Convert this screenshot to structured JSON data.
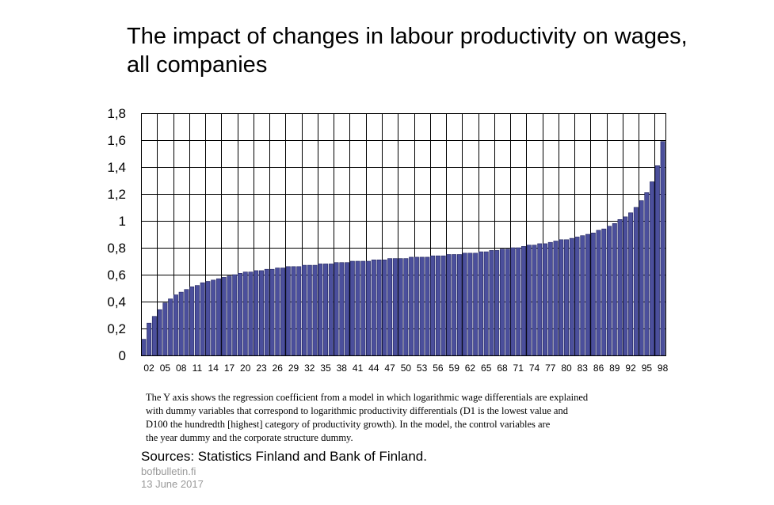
{
  "title_lines": [
    "The impact of changes in labour productivity on wages,",
    "all companies"
  ],
  "note_lines": [
    "The Y axis shows the regression coefficient from a model in which logarithmic  wage differentials are explained",
    " with dummy variables that correspond to logarithmic  productivity  differentials (D1 is the lowest value and",
    " D100 the hundredth [highest] category of productivity  growth). In the model,  the control variables are",
    " the year dummy  and the corporate structure dummy."
  ],
  "sources": "Sources: Statistics Finland  and  Bank of Finland.",
  "site": "bofbulletin.fi",
  "date": "13 June 2017",
  "colors": {
    "bar": "#4b4f9c",
    "bar_edge": "#23265e",
    "grid": "#000000"
  },
  "chart_data": {
    "type": "bar",
    "title": "The impact of changes in labour productivity on wages, all companies",
    "categories": [
      "01",
      "02",
      "03",
      "04",
      "05",
      "06",
      "07",
      "08",
      "09",
      "10",
      "11",
      "12",
      "13",
      "14",
      "15",
      "16",
      "17",
      "18",
      "19",
      "20",
      "21",
      "22",
      "23",
      "24",
      "25",
      "26",
      "27",
      "28",
      "29",
      "30",
      "31",
      "32",
      "33",
      "34",
      "35",
      "36",
      "37",
      "38",
      "39",
      "40",
      "41",
      "42",
      "43",
      "44",
      "45",
      "46",
      "47",
      "48",
      "49",
      "50",
      "51",
      "52",
      "53",
      "54",
      "55",
      "56",
      "57",
      "58",
      "59",
      "60",
      "61",
      "62",
      "63",
      "64",
      "65",
      "66",
      "67",
      "68",
      "69",
      "70",
      "71",
      "72",
      "73",
      "74",
      "75",
      "76",
      "77",
      "78",
      "79",
      "80",
      "81",
      "82",
      "83",
      "84",
      "85",
      "86",
      "87",
      "88",
      "89",
      "90",
      "91",
      "92",
      "93",
      "94",
      "95",
      "96",
      "97",
      "98"
    ],
    "x_tick_labels": [
      "02",
      "05",
      "08",
      "11",
      "14",
      "17",
      "20",
      "23",
      "26",
      "29",
      "32",
      "35",
      "38",
      "41",
      "44",
      "47",
      "50",
      "53",
      "56",
      "59",
      "62",
      "65",
      "68",
      "71",
      "74",
      "77",
      "80",
      "83",
      "86",
      "89",
      "92",
      "95",
      "98"
    ],
    "values": [
      0.12,
      0.24,
      0.29,
      0.34,
      0.39,
      0.42,
      0.45,
      0.47,
      0.49,
      0.51,
      0.52,
      0.54,
      0.55,
      0.56,
      0.57,
      0.58,
      0.59,
      0.6,
      0.61,
      0.62,
      0.62,
      0.63,
      0.63,
      0.64,
      0.64,
      0.65,
      0.65,
      0.66,
      0.66,
      0.66,
      0.67,
      0.67,
      0.67,
      0.68,
      0.68,
      0.68,
      0.69,
      0.69,
      0.69,
      0.7,
      0.7,
      0.7,
      0.7,
      0.71,
      0.71,
      0.71,
      0.72,
      0.72,
      0.72,
      0.72,
      0.73,
      0.73,
      0.73,
      0.73,
      0.74,
      0.74,
      0.74,
      0.75,
      0.75,
      0.75,
      0.76,
      0.76,
      0.76,
      0.77,
      0.77,
      0.78,
      0.78,
      0.79,
      0.79,
      0.8,
      0.8,
      0.81,
      0.82,
      0.82,
      0.83,
      0.83,
      0.84,
      0.85,
      0.86,
      0.86,
      0.87,
      0.88,
      0.89,
      0.9,
      0.91,
      0.93,
      0.94,
      0.96,
      0.98,
      1.01,
      1.03,
      1.06,
      1.1,
      1.15,
      1.21,
      1.29,
      1.41,
      1.59
    ],
    "y_tick_labels": [
      "0",
      "0,2",
      "0,4",
      "0,6",
      "0,8",
      "1",
      "1,2",
      "1,4",
      "1,6",
      "1,8"
    ],
    "ylim": [
      0,
      1.8
    ],
    "y_step": 0.2,
    "grid": true,
    "xlabel": "",
    "ylabel": ""
  }
}
